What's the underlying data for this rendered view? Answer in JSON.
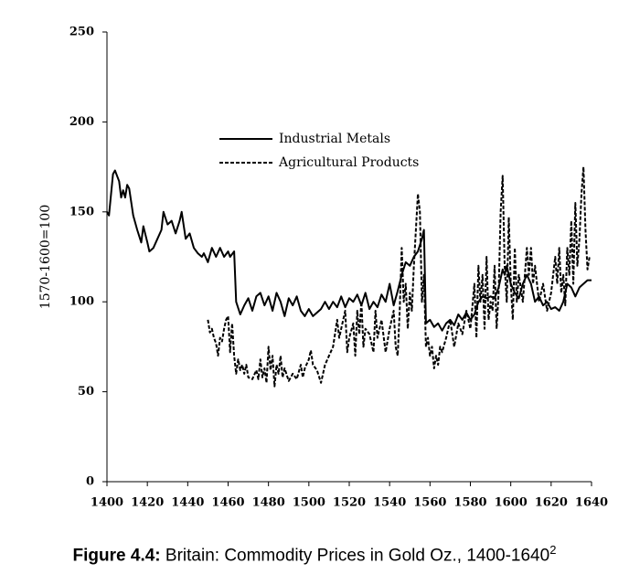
{
  "chart_data": {
    "type": "line",
    "y_label": "1570-1600=100",
    "caption_label": "Figure 4.4:",
    "caption_text": " Britain: Commodity Prices in Gold Oz., 1400-1640",
    "caption_note": "2",
    "xlim": [
      1400,
      1640
    ],
    "xticks": [
      1400,
      1420,
      1440,
      1460,
      1480,
      1500,
      1520,
      1540,
      1560,
      1580,
      1600,
      1620,
      1640
    ],
    "ylim": [
      0,
      250
    ],
    "yticks": [
      0,
      50,
      100,
      150,
      200,
      250
    ],
    "series": [
      {
        "name": "Industrial Metals",
        "color": "#000000",
        "dashed": false,
        "x": [
          1400,
          1401,
          1403,
          1404,
          1406,
          1407,
          1408,
          1409,
          1410,
          1411,
          1413,
          1415,
          1417,
          1418,
          1420,
          1421,
          1423,
          1425,
          1427,
          1428,
          1430,
          1432,
          1434,
          1436,
          1437,
          1439,
          1441,
          1443,
          1445,
          1447,
          1448,
          1450,
          1452,
          1454,
          1456,
          1458,
          1460,
          1461,
          1463,
          1464,
          1466,
          1468,
          1470,
          1472,
          1474,
          1476,
          1478,
          1480,
          1482,
          1484,
          1486,
          1488,
          1490,
          1492,
          1494,
          1496,
          1498,
          1500,
          1502,
          1504,
          1506,
          1508,
          1510,
          1512,
          1514,
          1516,
          1518,
          1520,
          1522,
          1524,
          1526,
          1528,
          1530,
          1532,
          1534,
          1536,
          1538,
          1540,
          1542,
          1544,
          1546,
          1548,
          1550,
          1552,
          1554,
          1556,
          1557,
          1558,
          1560,
          1562,
          1564,
          1566,
          1568,
          1570,
          1572,
          1574,
          1576,
          1578,
          1580,
          1582,
          1584,
          1586,
          1588,
          1590,
          1592,
          1594,
          1596,
          1597,
          1598,
          1600,
          1602,
          1604,
          1606,
          1608,
          1610,
          1612,
          1614,
          1616,
          1618,
          1620,
          1622,
          1624,
          1626,
          1628,
          1630,
          1632,
          1634,
          1636,
          1638,
          1640
        ],
        "values": [
          150,
          148,
          171,
          173,
          167,
          158,
          162,
          158,
          165,
          163,
          148,
          140,
          133,
          142,
          133,
          128,
          130,
          135,
          140,
          150,
          143,
          145,
          138,
          145,
          150,
          135,
          138,
          130,
          127,
          125,
          127,
          122,
          130,
          125,
          130,
          125,
          128,
          125,
          128,
          100,
          93,
          98,
          102,
          95,
          103,
          105,
          98,
          103,
          95,
          105,
          100,
          92,
          102,
          98,
          103,
          95,
          92,
          96,
          92,
          94,
          96,
          100,
          96,
          100,
          97,
          103,
          97,
          102,
          100,
          104,
          98,
          105,
          96,
          100,
          97,
          104,
          100,
          110,
          98,
          106,
          115,
          122,
          120,
          125,
          128,
          135,
          140,
          88,
          90,
          86,
          88,
          84,
          88,
          90,
          87,
          93,
          90,
          94,
          90,
          93,
          100,
          103,
          102,
          103,
          102,
          108,
          118,
          115,
          120,
          110,
          105,
          102,
          110,
          115,
          110,
          100,
          103,
          98,
          100,
          96,
          97,
          95,
          100,
          110,
          108,
          103,
          108,
          110,
          112,
          112
        ]
      },
      {
        "name": "Agricultural Products",
        "color": "#000000",
        "dashed": true,
        "x": [
          1450,
          1451,
          1452,
          1453,
          1454,
          1455,
          1456,
          1457,
          1458,
          1459,
          1460,
          1461,
          1462,
          1463,
          1464,
          1465,
          1466,
          1467,
          1468,
          1469,
          1470,
          1472,
          1474,
          1475,
          1476,
          1477,
          1478,
          1479,
          1480,
          1481,
          1482,
          1483,
          1484,
          1485,
          1486,
          1487,
          1488,
          1490,
          1492,
          1494,
          1496,
          1497,
          1498,
          1500,
          1501,
          1502,
          1504,
          1506,
          1508,
          1510,
          1512,
          1514,
          1515,
          1516,
          1518,
          1519,
          1520,
          1522,
          1523,
          1524,
          1525,
          1526,
          1527,
          1528,
          1530,
          1532,
          1533,
          1534,
          1536,
          1538,
          1540,
          1542,
          1543,
          1544,
          1545,
          1546,
          1547,
          1548,
          1549,
          1550,
          1551,
          1552,
          1553,
          1554,
          1555,
          1556,
          1557,
          1558,
          1559,
          1560,
          1561,
          1562,
          1563,
          1564,
          1565,
          1566,
          1568,
          1570,
          1572,
          1574,
          1576,
          1578,
          1580,
          1582,
          1583,
          1584,
          1585,
          1586,
          1587,
          1588,
          1589,
          1590,
          1591,
          1592,
          1593,
          1594,
          1595,
          1596,
          1597,
          1598,
          1599,
          1600,
          1601,
          1602,
          1603,
          1604,
          1606,
          1608,
          1609,
          1610,
          1611,
          1612,
          1614,
          1616,
          1618,
          1620,
          1622,
          1623,
          1624,
          1625,
          1626,
          1627,
          1628,
          1629,
          1630,
          1631,
          1632,
          1633,
          1634,
          1635,
          1636,
          1637,
          1638,
          1639
        ],
        "values": [
          90,
          83,
          85,
          80,
          77,
          70,
          80,
          78,
          85,
          90,
          92,
          72,
          88,
          70,
          60,
          68,
          62,
          65,
          60,
          65,
          58,
          57,
          62,
          57,
          68,
          58,
          63,
          55,
          75,
          62,
          70,
          53,
          65,
          60,
          70,
          58,
          63,
          56,
          60,
          57,
          65,
          58,
          63,
          68,
          73,
          65,
          62,
          55,
          65,
          70,
          75,
          90,
          80,
          85,
          95,
          72,
          80,
          88,
          70,
          95,
          82,
          100,
          75,
          85,
          82,
          72,
          95,
          80,
          90,
          72,
          85,
          95,
          75,
          70,
          95,
          130,
          100,
          110,
          85,
          105,
          95,
          120,
          140,
          160,
          150,
          100,
          115,
          75,
          80,
          70,
          75,
          63,
          70,
          65,
          75,
          72,
          80,
          90,
          75,
          88,
          82,
          95,
          85,
          110,
          80,
          120,
          100,
          115,
          85,
          125,
          90,
          100,
          95,
          120,
          85,
          105,
          150,
          170,
          120,
          100,
          147,
          110,
          90,
          130,
          100,
          115,
          100,
          130,
          115,
          130,
          110,
          120,
          100,
          110,
          95,
          105,
          125,
          110,
          130,
          105,
          115,
          98,
          130,
          115,
          145,
          110,
          155,
          120,
          135,
          160,
          175,
          140,
          118,
          125
        ]
      }
    ]
  }
}
